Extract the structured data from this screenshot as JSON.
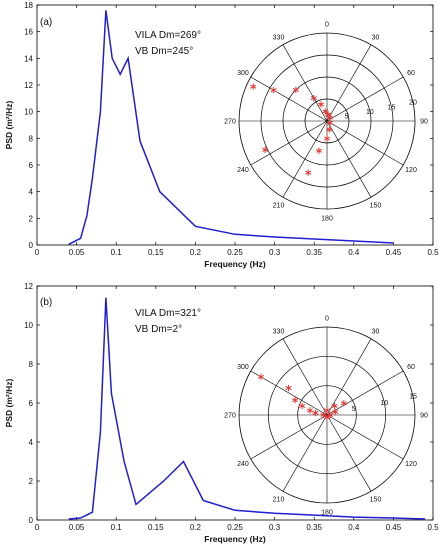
{
  "chart_data": [
    {
      "type": "line",
      "panel_label": "(a)",
      "xlabel": "Frequency (Hz)",
      "ylabel": "PSD (m²/Hz)",
      "xlim": [
        0,
        0.5
      ],
      "ylim": [
        0,
        18
      ],
      "xticks": [
        "0",
        "0.05",
        "0.1",
        "0.15",
        "0.2",
        "0.25",
        "0.3",
        "0.35",
        "0.4",
        "0.45",
        "0.5"
      ],
      "yticks": [
        "0",
        "2",
        "4",
        "6",
        "8",
        "10",
        "12",
        "14",
        "16",
        "18"
      ],
      "grid": false,
      "series_color": "#1f1fd0",
      "x": [
        0.04,
        0.055,
        0.063,
        0.07,
        0.08,
        0.087,
        0.095,
        0.105,
        0.115,
        0.13,
        0.155,
        0.2,
        0.25,
        0.3,
        0.35,
        0.4,
        0.45
      ],
      "values": [
        0.05,
        0.5,
        2.2,
        5.0,
        10.0,
        17.6,
        14.0,
        12.8,
        14.0,
        7.8,
        4.0,
        1.4,
        0.8,
        0.6,
        0.45,
        0.3,
        0.15
      ],
      "annotations": [
        "VILA Dm=269°",
        "VB Dm=245°"
      ],
      "polar": {
        "angle_labels": [
          "0",
          "30",
          "60",
          "90",
          "120",
          "150",
          "180",
          "210",
          "240",
          "270",
          "300",
          "330"
        ],
        "radial_labels": [
          "5",
          "10",
          "15",
          "20"
        ],
        "rmax": 20,
        "marker_color": "#e53030",
        "points": [
          {
            "theta": 295,
            "r": 18.5
          },
          {
            "theta": 300,
            "r": 14.0
          },
          {
            "theta": 315,
            "r": 10.0
          },
          {
            "theta": 330,
            "r": 6.0
          },
          {
            "theta": 340,
            "r": 4.0
          },
          {
            "theta": 350,
            "r": 2.2
          },
          {
            "theta": 10,
            "r": 1.5
          },
          {
            "theta": 40,
            "r": 1.0
          },
          {
            "theta": 120,
            "r": 0.8
          },
          {
            "theta": 165,
            "r": 2.0
          },
          {
            "theta": 180,
            "r": 4.0
          },
          {
            "theta": 195,
            "r": 7.0
          },
          {
            "theta": 200,
            "r": 12.5
          },
          {
            "theta": 245,
            "r": 15.5
          }
        ]
      }
    },
    {
      "type": "line",
      "panel_label": "(b)",
      "xlabel": "Frequency (Hz)",
      "ylabel": "PSD (m²/Hz)",
      "xlim": [
        0,
        0.5
      ],
      "ylim": [
        0,
        12
      ],
      "xticks": [
        "0",
        "0.05",
        "0.1",
        "0.15",
        "0.2",
        "0.25",
        "0.3",
        "0.35",
        "0.4",
        "0.45",
        "0.5"
      ],
      "yticks": [
        "0",
        "2",
        "4",
        "6",
        "8",
        "10",
        "12"
      ],
      "grid": false,
      "series_color": "#1f1fd0",
      "x": [
        0.04,
        0.055,
        0.07,
        0.08,
        0.087,
        0.094,
        0.11,
        0.125,
        0.16,
        0.185,
        0.21,
        0.25,
        0.3,
        0.35,
        0.4,
        0.45,
        0.49
      ],
      "values": [
        0.05,
        0.1,
        0.4,
        4.5,
        11.4,
        6.5,
        3.0,
        0.8,
        2.0,
        3.0,
        1.0,
        0.5,
        0.35,
        0.25,
        0.15,
        0.1,
        0.05
      ],
      "annotations": [
        "VILA Dm=321°",
        "VB Dm=2°"
      ],
      "polar": {
        "angle_labels": [
          "0",
          "30",
          "60",
          "90",
          "120",
          "150",
          "180",
          "210",
          "240",
          "270",
          "300",
          "330"
        ],
        "radial_labels": [
          "5",
          "10",
          "15"
        ],
        "rmax": 15,
        "marker_color": "#e53030",
        "points": [
          {
            "theta": 300,
            "r": 13.0
          },
          {
            "theta": 305,
            "r": 8.0
          },
          {
            "theta": 295,
            "r": 6.0
          },
          {
            "theta": 290,
            "r": 4.5
          },
          {
            "theta": 285,
            "r": 3.0
          },
          {
            "theta": 280,
            "r": 2.0
          },
          {
            "theta": 40,
            "r": 2.0
          },
          {
            "theta": 55,
            "r": 3.5
          },
          {
            "theta": 70,
            "r": 1.5
          },
          {
            "theta": 0,
            "r": 0.8
          },
          {
            "theta": 90,
            "r": 0.5
          },
          {
            "theta": 180,
            "r": 0.4
          },
          {
            "theta": 270,
            "r": 0.6
          }
        ]
      }
    }
  ]
}
